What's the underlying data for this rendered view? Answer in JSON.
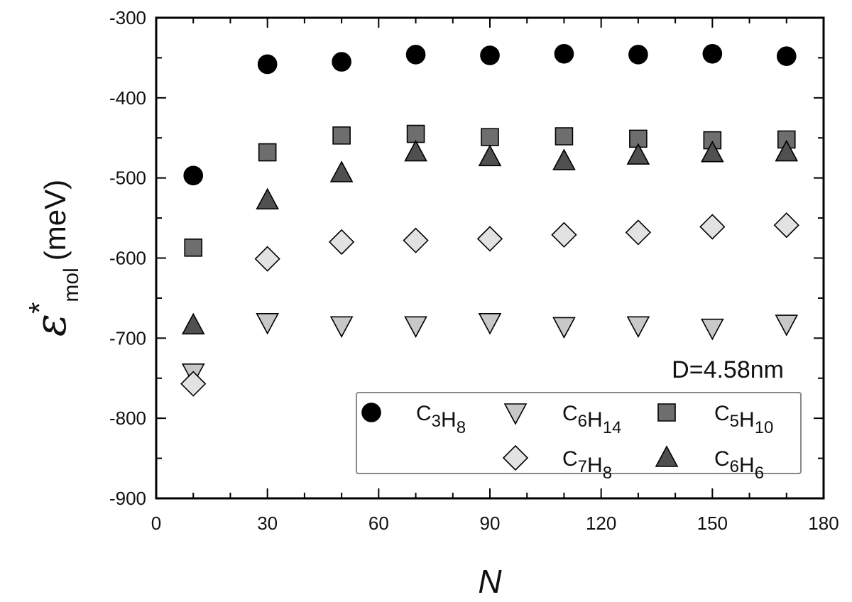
{
  "chart_data": {
    "type": "scatter",
    "xlabel": "N",
    "ylabel": {
      "main": "ε",
      "sup": "*",
      "sub": "mol",
      "unit": "(meV)"
    },
    "xlim": [
      0,
      180
    ],
    "ylim": [
      -900,
      -300
    ],
    "xticks": [
      0,
      30,
      60,
      90,
      120,
      150,
      180
    ],
    "yticks": [
      -300,
      -400,
      -500,
      -600,
      -700,
      -800,
      -900
    ],
    "x_minor_step": 10,
    "y_minor_step": 50,
    "grid": false,
    "annotation": "D=4.58nm",
    "legend_position": "bottom-right",
    "x": [
      10,
      30,
      50,
      70,
      90,
      110,
      130,
      150,
      170
    ],
    "series": [
      {
        "name": "C3H8",
        "label_parts": [
          [
            "C",
            ""
          ],
          [
            "3",
            "sub"
          ],
          [
            "H",
            ""
          ],
          [
            "8",
            "sub"
          ]
        ],
        "marker": "circle",
        "color": "#000000",
        "values": [
          -497,
          -358,
          -355,
          -346,
          -347,
          -345,
          -346,
          -345,
          -348
        ]
      },
      {
        "name": "C6H14",
        "label_parts": [
          [
            "C",
            ""
          ],
          [
            "6",
            "sub"
          ],
          [
            "H",
            ""
          ],
          [
            "14",
            "sub"
          ]
        ],
        "marker": "triangle-down",
        "color": "#c8c8c8",
        "values": [
          -743,
          -680,
          -684,
          -684,
          -680,
          -685,
          -684,
          -687,
          -682
        ]
      },
      {
        "name": "C5H10",
        "label_parts": [
          [
            "C",
            ""
          ],
          [
            "5",
            "sub"
          ],
          [
            "H",
            ""
          ],
          [
            "10",
            "sub"
          ]
        ],
        "marker": "square",
        "color": "#6e6e6e",
        "values": [
          -587,
          -468,
          -447,
          -445,
          -449,
          -448,
          -451,
          -453,
          -452
        ]
      },
      {
        "name": "C7H8",
        "label_parts": [
          [
            "C",
            ""
          ],
          [
            "7",
            "sub"
          ],
          [
            "H",
            ""
          ],
          [
            "8",
            "sub"
          ]
        ],
        "marker": "diamond",
        "color": "#e2e2e2",
        "values": [
          -757,
          -601,
          -580,
          -578,
          -576,
          -571,
          -568,
          -561,
          -559
        ]
      },
      {
        "name": "C6H6",
        "label_parts": [
          [
            "C",
            ""
          ],
          [
            "6",
            "sub"
          ],
          [
            "H",
            ""
          ],
          [
            "6",
            "sub"
          ]
        ],
        "marker": "triangle-up",
        "color": "#505050",
        "values": [
          -684,
          -528,
          -494,
          -468,
          -474,
          -479,
          -472,
          -469,
          -468
        ]
      }
    ]
  }
}
